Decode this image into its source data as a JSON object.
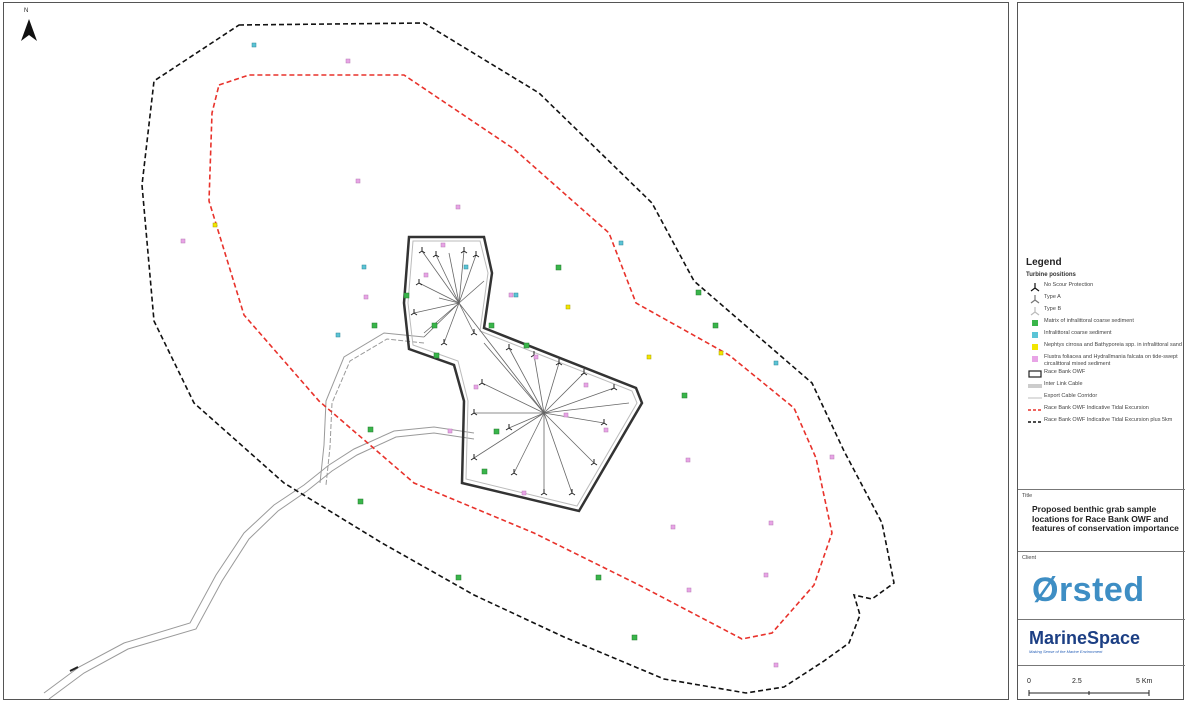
{
  "map": {
    "north_label": "N"
  },
  "legend": {
    "title": "Legend",
    "subtitle": "Turbine positions",
    "items": [
      {
        "symbol": "turbine-black",
        "label": "No Scour Protection"
      },
      {
        "symbol": "turbine-grey",
        "label": "Type A"
      },
      {
        "symbol": "turbine-light",
        "label": "Type B"
      },
      {
        "symbol": "square-green",
        "label": "Matrix of infralittoral coarse sediment",
        "color": "#39b54a"
      },
      {
        "symbol": "square-cyan",
        "label": "Infralittoral coarse sediment",
        "color": "#5bc4d6"
      },
      {
        "symbol": "square-yellow",
        "label": "Nephtys cirrosa and Bathyporeia spp. in infralittoral sand",
        "color": "#f2e600"
      },
      {
        "symbol": "square-pink",
        "label": "Flustra foliacea and Hydrallmania falcata on tide-swept circalittoral mixed sediment",
        "color": "#e8a4e6"
      },
      {
        "symbol": "owf-box",
        "label": "Race Bank OWF"
      },
      {
        "symbol": "inter-link",
        "label": "Inter Link Cable"
      },
      {
        "symbol": "export-cable",
        "label": "Export Cable Corridor"
      },
      {
        "symbol": "red-dash",
        "label": "Race Bank OWF Indicative Tidal Excursion"
      },
      {
        "symbol": "black-dash",
        "label": "Race Bank OWF Indicative Tidal Excursion plus 5km"
      }
    ]
  },
  "title_block": {
    "label": "Title",
    "text": "Proposed benthic grab sample locations for Race Bank OWF and features of conservation importance"
  },
  "client_block": {
    "label": "Client",
    "logo": "Ørsted"
  },
  "consultant": {
    "name": "MarineSpace",
    "tagline": "Making Sense of the Marine Environment"
  },
  "scale": {
    "labels": [
      "0",
      "2.5",
      "5 Km"
    ]
  },
  "colors": {
    "green": "#39b54a",
    "cyan": "#5bc4d6",
    "yellow": "#f2e600",
    "pink": "#e8a4e6",
    "red_dash": "#e8322b",
    "black_dash": "#111111",
    "client_blue": "#3e8ec4",
    "consultant_blue": "#1c3f84"
  }
}
